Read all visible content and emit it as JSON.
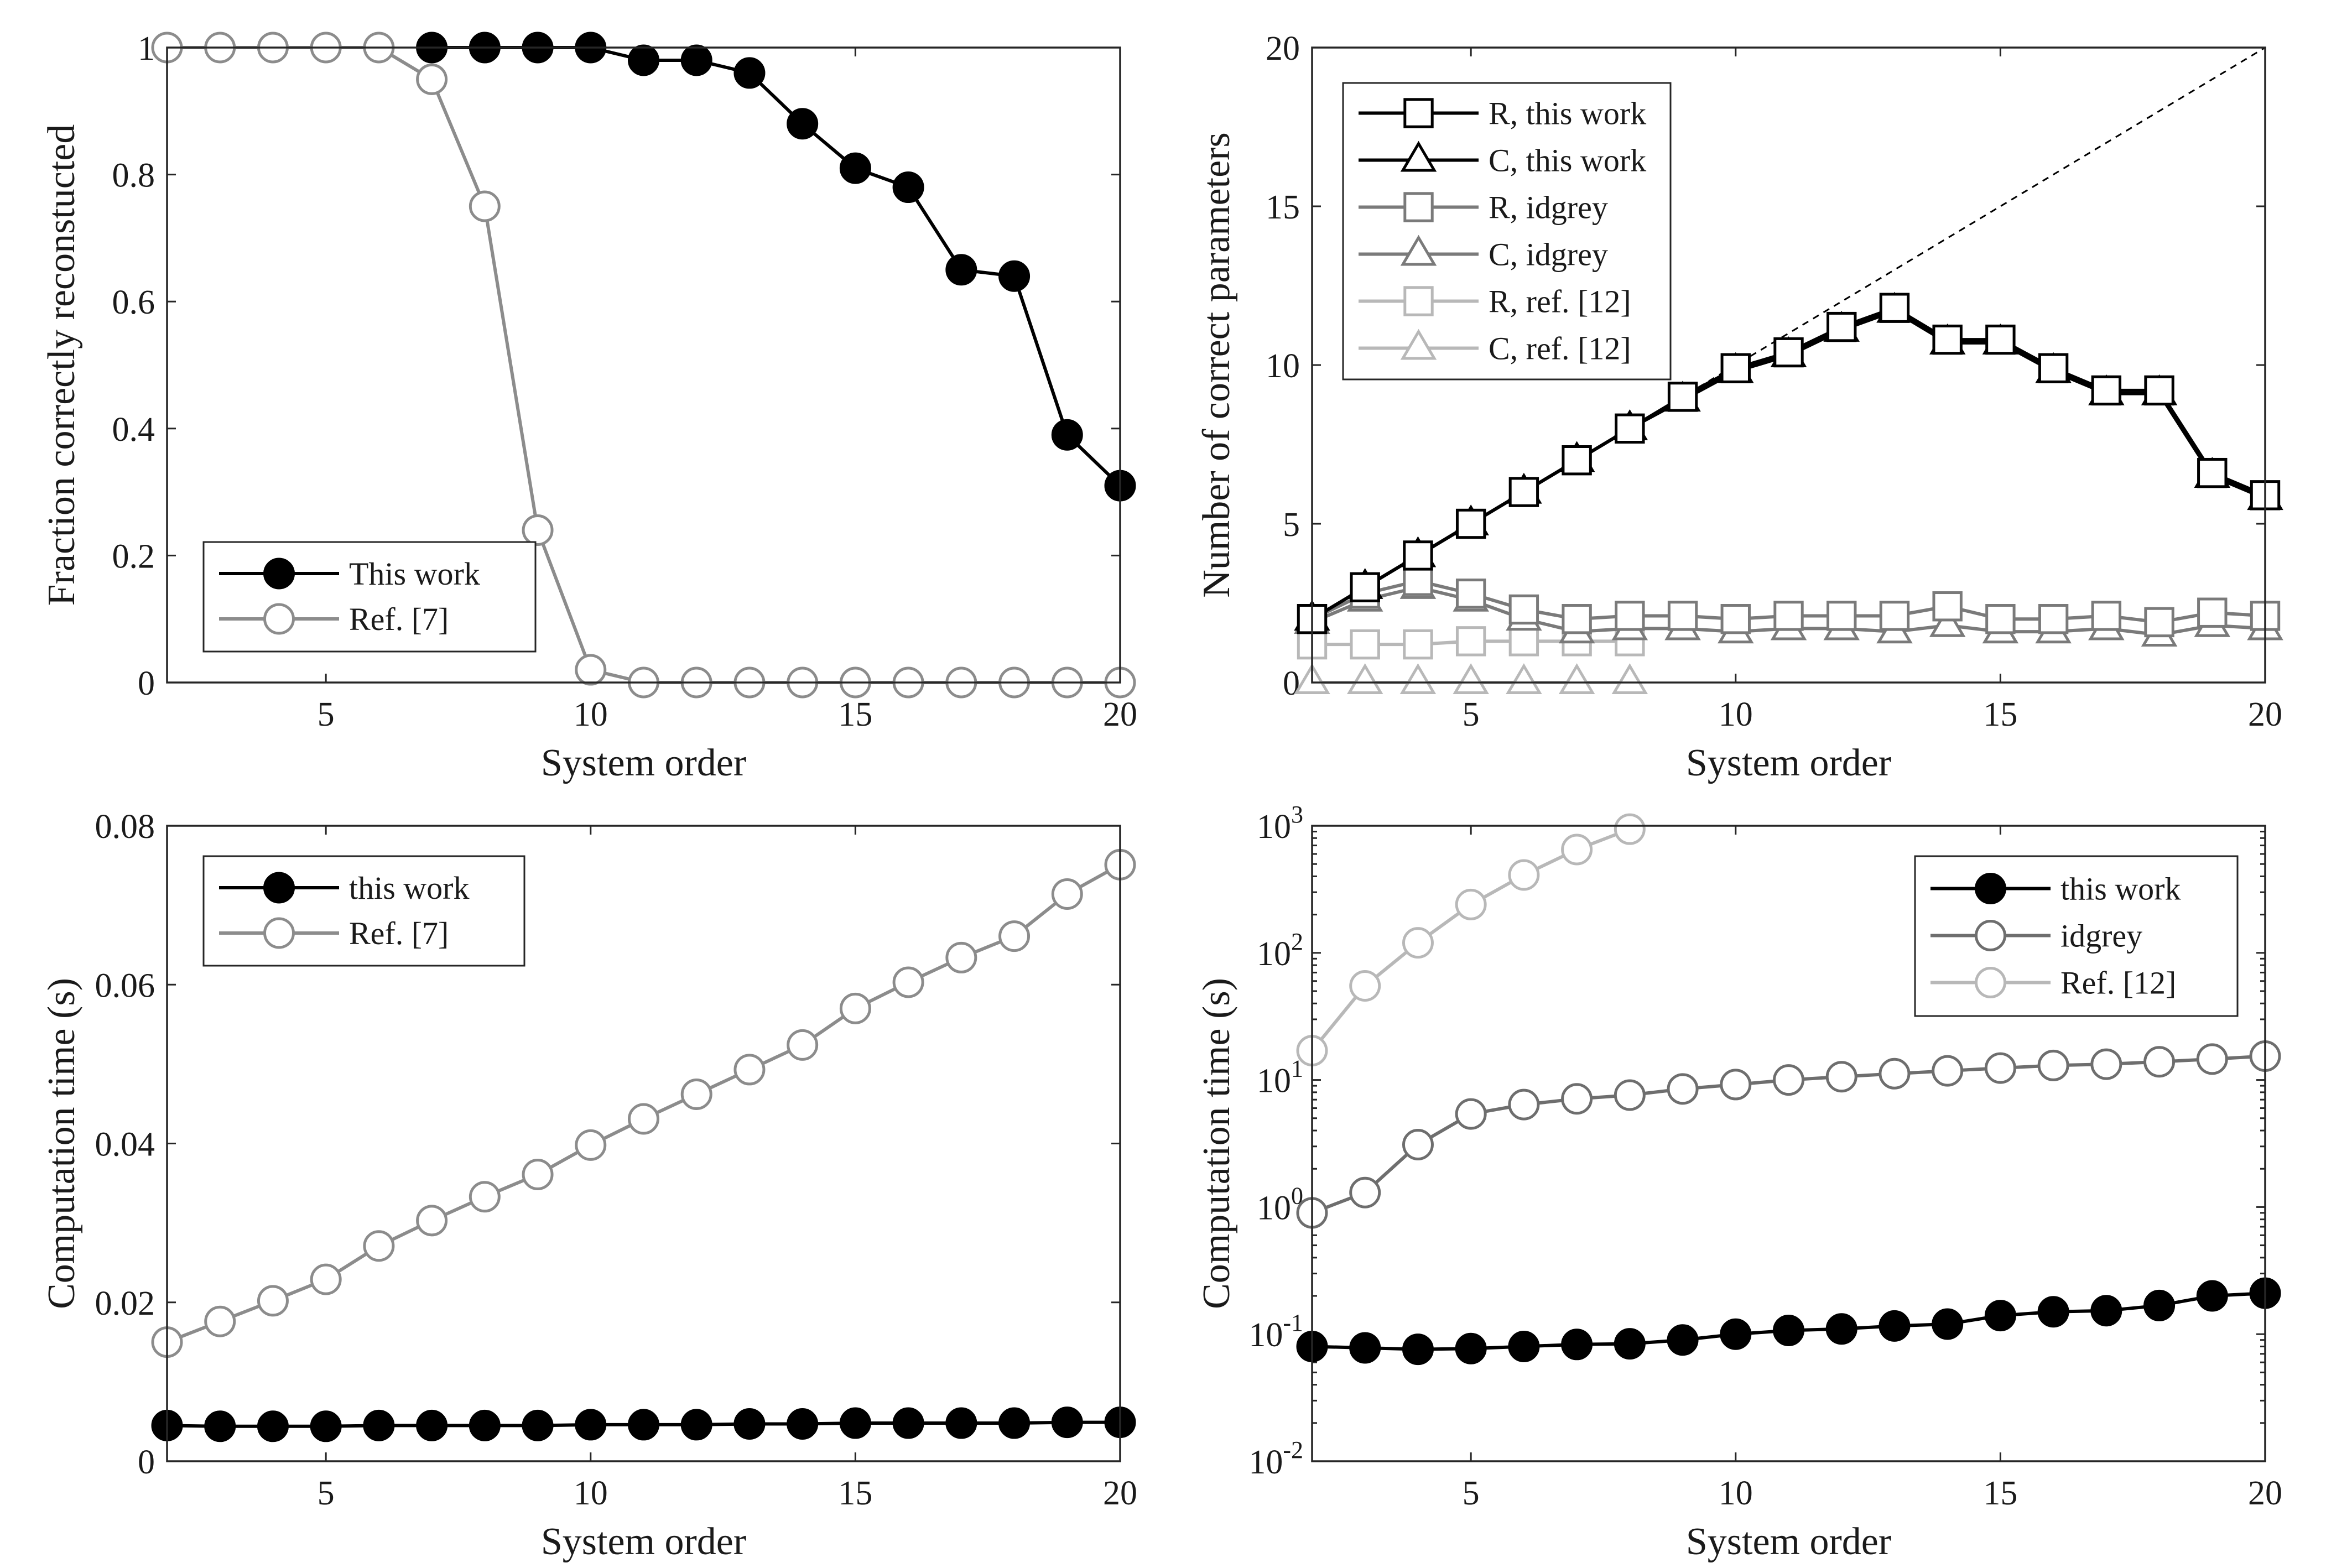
{
  "figure": {
    "panel_order": [
      "top-left",
      "top-right",
      "bottom-left",
      "bottom-right"
    ]
  },
  "chart_data": [
    {
      "type": "line",
      "xlabel": "System order",
      "ylabel": "Fraction correctly reconstucted",
      "xlim": [
        2,
        20
      ],
      "ylim": [
        0,
        1
      ],
      "xticks": [
        5,
        10,
        15,
        20
      ],
      "xtick_labels": [
        "5",
        "10",
        "15",
        "20"
      ],
      "yticks": [
        0,
        0.2,
        0.4,
        0.6,
        0.8,
        1
      ],
      "ytick_labels": [
        "0",
        "0.2",
        "0.4",
        "0.6",
        "0.8",
        "1"
      ],
      "yscale": "linear",
      "grid": false,
      "legend_position": "bottom-left",
      "series": [
        {
          "name": "This work",
          "color": "#000000",
          "marker": "circle",
          "filled": true,
          "x": [
            7,
            8,
            9,
            10,
            11,
            12,
            13,
            14,
            15,
            16,
            17,
            18,
            19,
            20
          ],
          "y": [
            1,
            1,
            1,
            1,
            0.98,
            0.98,
            0.96,
            0.88,
            0.81,
            0.78,
            0.65,
            0.64,
            0.39,
            0.31
          ]
        },
        {
          "name": "Ref. [7]",
          "color": "#8c8c8c",
          "marker": "circle",
          "filled": false,
          "x": [
            2,
            3,
            4,
            5,
            6,
            7,
            8,
            9,
            10,
            11,
            12,
            13,
            14,
            15,
            16,
            17,
            18,
            19,
            20
          ],
          "y": [
            1,
            1,
            1,
            1,
            1,
            0.95,
            0.75,
            0.24,
            0.02,
            0,
            0,
            0,
            0,
            0,
            0,
            0,
            0,
            0,
            0
          ]
        }
      ]
    },
    {
      "type": "line",
      "xlabel": "System order",
      "ylabel": "Number of correct parameters",
      "xlim": [
        2,
        20
      ],
      "ylim": [
        0,
        20
      ],
      "xticks": [
        5,
        10,
        15,
        20
      ],
      "xtick_labels": [
        "5",
        "10",
        "15",
        "20"
      ],
      "yticks": [
        0,
        5,
        10,
        15,
        20
      ],
      "ytick_labels": [
        "0",
        "5",
        "10",
        "15",
        "20"
      ],
      "yscale": "linear",
      "grid": false,
      "legend_position": "top-left",
      "reference_line": {
        "x": [
          2,
          20
        ],
        "y": [
          2,
          20
        ],
        "style": "dashed",
        "color": "#000000"
      },
      "series": [
        {
          "name": "R, this work",
          "color": "#000000",
          "marker": "square",
          "filled": false,
          "x": [
            2,
            3,
            4,
            5,
            6,
            7,
            8,
            9,
            10,
            11,
            12,
            13,
            14,
            15,
            16,
            17,
            18,
            19,
            20
          ],
          "y": [
            2,
            3,
            4,
            5,
            6,
            7,
            8,
            9,
            9.9,
            10.4,
            11.2,
            11.8,
            10.8,
            10.8,
            9.9,
            9.2,
            9.2,
            6.6,
            5.9
          ]
        },
        {
          "name": "C, this work",
          "color": "#000000",
          "marker": "triangle",
          "filled": false,
          "x": [
            2,
            3,
            4,
            5,
            6,
            7,
            8,
            9,
            10,
            11,
            12,
            13,
            14,
            15,
            16,
            17,
            18,
            19,
            20
          ],
          "y": [
            2,
            3,
            4,
            5,
            6,
            7,
            8,
            8.9,
            9.8,
            10.3,
            11.1,
            11.7,
            10.7,
            10.7,
            9.8,
            9.1,
            9.1,
            6.5,
            5.8
          ]
        },
        {
          "name": "R, idgrey",
          "color": "#7a7a7a",
          "marker": "square",
          "filled": false,
          "x": [
            2,
            3,
            4,
            5,
            6,
            7,
            8,
            9,
            10,
            11,
            12,
            13,
            14,
            15,
            16,
            17,
            18,
            19,
            20
          ],
          "y": [
            2,
            2.8,
            3.2,
            2.8,
            2.3,
            2,
            2.1,
            2.1,
            2,
            2.1,
            2.1,
            2.1,
            2.4,
            2,
            2,
            2.1,
            1.9,
            2.2,
            2.1
          ]
        },
        {
          "name": "C, idgrey",
          "color": "#7a7a7a",
          "marker": "triangle",
          "filled": false,
          "x": [
            2,
            3,
            4,
            5,
            6,
            7,
            8,
            9,
            10,
            11,
            12,
            13,
            14,
            15,
            16,
            17,
            18,
            19,
            20
          ],
          "y": [
            1.9,
            2.6,
            3,
            2.6,
            2,
            1.6,
            1.7,
            1.7,
            1.6,
            1.7,
            1.7,
            1.6,
            1.8,
            1.6,
            1.6,
            1.7,
            1.5,
            1.8,
            1.7
          ]
        },
        {
          "name": "R, ref. [12]",
          "color": "#b8b8b8",
          "marker": "square",
          "filled": false,
          "x": [
            2,
            3,
            4,
            5,
            6,
            7,
            8
          ],
          "y": [
            1.2,
            1.2,
            1.2,
            1.3,
            1.3,
            1.3,
            1.3
          ]
        },
        {
          "name": "C, ref. [12]",
          "color": "#b8b8b8",
          "marker": "triangle",
          "filled": false,
          "x": [
            2,
            3,
            4,
            5,
            6,
            7,
            8
          ],
          "y": [
            0,
            0,
            0,
            0,
            0,
            0,
            0
          ]
        }
      ]
    },
    {
      "type": "line",
      "xlabel": "System order",
      "ylabel": "Computation time (s)",
      "xlim": [
        2,
        20
      ],
      "ylim": [
        0,
        0.08
      ],
      "xticks": [
        5,
        10,
        15,
        20
      ],
      "xtick_labels": [
        "5",
        "10",
        "15",
        "20"
      ],
      "yticks": [
        0,
        0.02,
        0.04,
        0.06,
        0.08
      ],
      "ytick_labels": [
        "0",
        "0.02",
        "0.04",
        "0.06",
        "0.08"
      ],
      "yscale": "linear",
      "grid": false,
      "legend_position": "top-left",
      "series": [
        {
          "name": "this work",
          "color": "#000000",
          "marker": "circle",
          "filled": true,
          "x": [
            2,
            3,
            4,
            5,
            6,
            7,
            8,
            9,
            10,
            11,
            12,
            13,
            14,
            15,
            16,
            17,
            18,
            19,
            20
          ],
          "y": [
            0.0045,
            0.0044,
            0.0044,
            0.0044,
            0.0045,
            0.0045,
            0.0045,
            0.0045,
            0.0046,
            0.0046,
            0.0046,
            0.0047,
            0.0047,
            0.0048,
            0.0048,
            0.0048,
            0.0048,
            0.0049,
            0.0049
          ]
        },
        {
          "name": "Ref. [7]",
          "color": "#8c8c8c",
          "marker": "circle",
          "filled": false,
          "x": [
            2,
            3,
            4,
            5,
            6,
            7,
            8,
            9,
            10,
            11,
            12,
            13,
            14,
            15,
            16,
            17,
            18,
            19,
            20
          ],
          "y": [
            0.015,
            0.0176,
            0.0202,
            0.0229,
            0.0271,
            0.0303,
            0.0333,
            0.0361,
            0.0398,
            0.0431,
            0.0462,
            0.0493,
            0.0524,
            0.057,
            0.0603,
            0.0634,
            0.0661,
            0.0714,
            0.0751
          ]
        }
      ]
    },
    {
      "type": "line",
      "xlabel": "System order",
      "ylabel": "Computation time (s)",
      "xlim": [
        2,
        20
      ],
      "ylim": [
        0.01,
        1000
      ],
      "xticks": [
        5,
        10,
        15,
        20
      ],
      "xtick_labels": [
        "5",
        "10",
        "15",
        "20"
      ],
      "yticks": [
        0.01,
        0.1,
        1,
        10,
        100,
        1000
      ],
      "ytick_labels": [
        {
          "base": "10",
          "exp": "-2"
        },
        {
          "base": "10",
          "exp": "-1"
        },
        {
          "base": "10",
          "exp": "0"
        },
        {
          "base": "10",
          "exp": "1"
        },
        {
          "base": "10",
          "exp": "2"
        },
        {
          "base": "10",
          "exp": "3"
        }
      ],
      "yscale": "log",
      "grid": false,
      "legend_position": "top-right",
      "series": [
        {
          "name": "this work",
          "color": "#000000",
          "marker": "circle",
          "filled": true,
          "x": [
            2,
            3,
            4,
            5,
            6,
            7,
            8,
            9,
            10,
            11,
            12,
            13,
            14,
            15,
            16,
            17,
            18,
            19,
            20
          ],
          "y": [
            0.08,
            0.078,
            0.076,
            0.077,
            0.08,
            0.083,
            0.084,
            0.09,
            0.1,
            0.107,
            0.11,
            0.116,
            0.12,
            0.14,
            0.15,
            0.153,
            0.168,
            0.2,
            0.21
          ]
        },
        {
          "name": "idgrey",
          "color": "#6e6e6e",
          "marker": "circle",
          "filled": false,
          "x": [
            2,
            3,
            4,
            5,
            6,
            7,
            8,
            9,
            10,
            11,
            12,
            13,
            14,
            15,
            16,
            17,
            18,
            19,
            20
          ],
          "y": [
            0.9,
            1.3,
            3.1,
            5.4,
            6.4,
            7.1,
            7.6,
            8.5,
            9.2,
            10,
            10.6,
            11.2,
            11.8,
            12.4,
            13,
            13.3,
            13.9,
            14.6,
            15.4
          ]
        },
        {
          "name": "Ref. [12]",
          "color": "#b8b8b8",
          "marker": "circle",
          "filled": false,
          "x": [
            2,
            3,
            4,
            5,
            6,
            7,
            8
          ],
          "y": [
            17,
            55,
            120,
            240,
            410,
            650,
            940
          ]
        }
      ]
    }
  ]
}
